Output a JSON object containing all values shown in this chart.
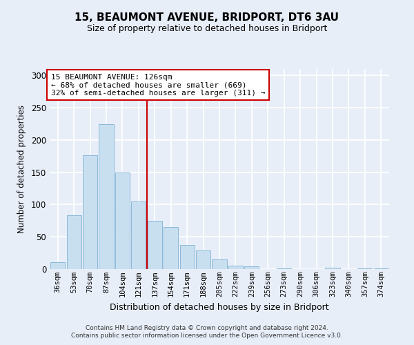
{
  "title1": "15, BEAUMONT AVENUE, BRIDPORT, DT6 3AU",
  "title2": "Size of property relative to detached houses in Bridport",
  "xlabel": "Distribution of detached houses by size in Bridport",
  "ylabel": "Number of detached properties",
  "bar_labels": [
    "36sqm",
    "53sqm",
    "70sqm",
    "87sqm",
    "104sqm",
    "121sqm",
    "137sqm",
    "154sqm",
    "171sqm",
    "188sqm",
    "205sqm",
    "222sqm",
    "239sqm",
    "256sqm",
    "273sqm",
    "290sqm",
    "306sqm",
    "323sqm",
    "340sqm",
    "357sqm",
    "374sqm"
  ],
  "bar_values": [
    11,
    83,
    176,
    225,
    150,
    105,
    75,
    65,
    37,
    29,
    15,
    5,
    4,
    0,
    1,
    0,
    0,
    2,
    0,
    1,
    1
  ],
  "bar_color": "#c8dff0",
  "bar_edge_color": "#8ab8d8",
  "vline_x": 5.5,
  "vline_color": "#cc0000",
  "annotation_title": "15 BEAUMONT AVENUE: 126sqm",
  "annotation_line1": "← 68% of detached houses are smaller (669)",
  "annotation_line2": "32% of semi-detached houses are larger (311) →",
  "annotation_box_color": "#ffffff",
  "annotation_box_edge": "#cc0000",
  "ylim": [
    0,
    310
  ],
  "yticks": [
    0,
    50,
    100,
    150,
    200,
    250,
    300
  ],
  "footer1": "Contains HM Land Registry data © Crown copyright and database right 2024.",
  "footer2": "Contains public sector information licensed under the Open Government Licence v3.0.",
  "bg_color": "#e8eef8",
  "grid_color": "#ffffff",
  "title1_fontsize": 11,
  "title2_fontsize": 9
}
